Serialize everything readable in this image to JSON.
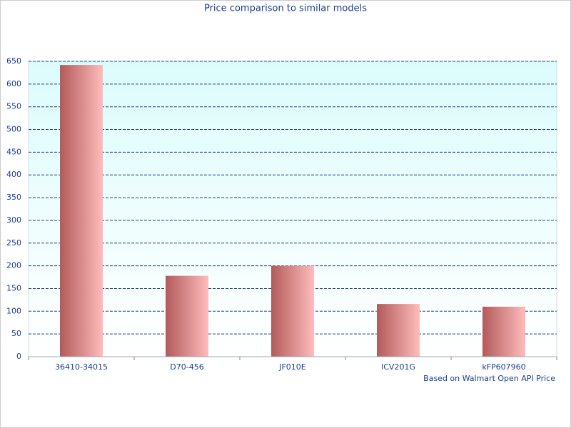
{
  "chart_data": {
    "type": "bar",
    "title": "Price comparison to similar models",
    "footnote": "Based on Walmart Open API Price",
    "categories": [
      "36410-34015",
      "D70-456",
      "JF010E",
      "ICV201G",
      "kFP607960"
    ],
    "values": [
      642,
      178,
      200,
      116,
      110
    ],
    "color": [
      "#b35a5a",
      "#ffbcbc"
    ],
    "ylim": [
      0,
      650
    ],
    "yticks": [
      0,
      50,
      100,
      150,
      200,
      250,
      300,
      350,
      400,
      450,
      500,
      550,
      600,
      650
    ],
    "grid": true
  }
}
